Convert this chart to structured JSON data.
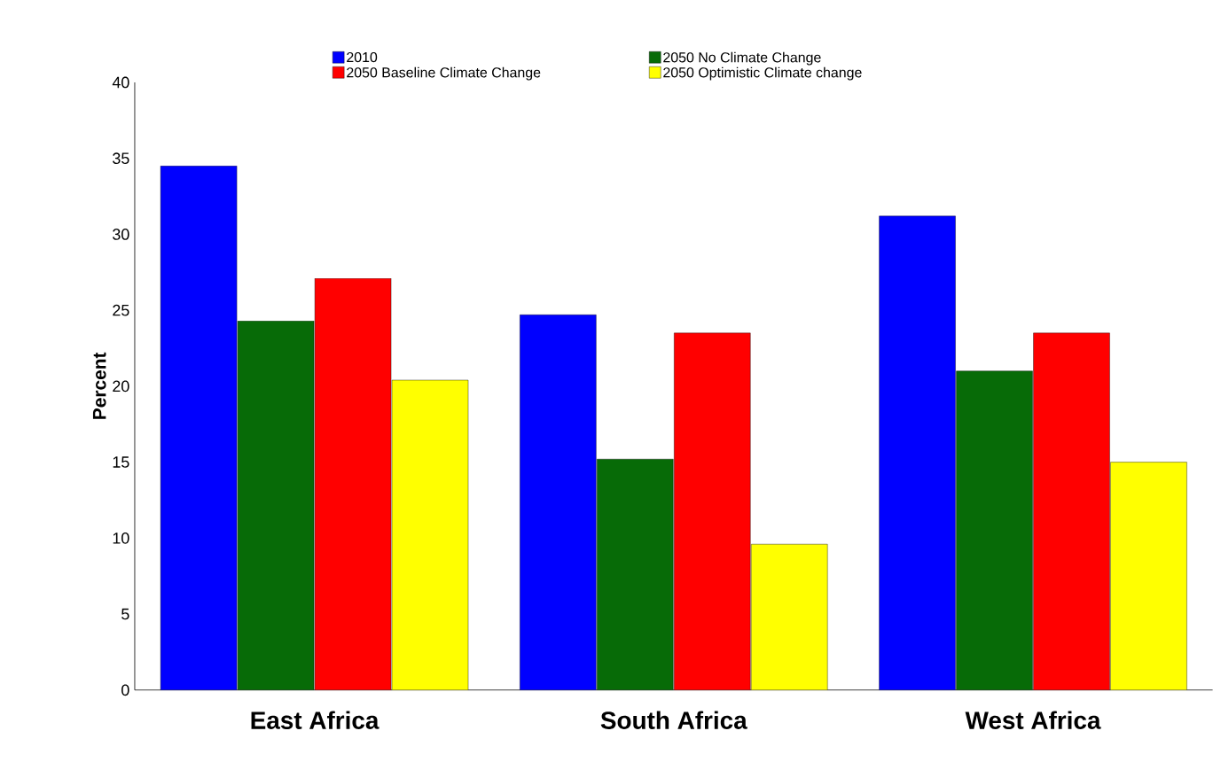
{
  "chart_data": {
    "type": "bar",
    "ylabel": "Percent",
    "categories": [
      "East Africa",
      "South Africa",
      "West Africa"
    ],
    "series": [
      {
        "name": "2010",
        "color": "#0000ff",
        "values": [
          34.5,
          24.7,
          31.2
        ]
      },
      {
        "name": "2050 No Climate Change",
        "color": "#076b07",
        "values": [
          24.3,
          15.2,
          21.0
        ]
      },
      {
        "name": "2050 Baseline Climate Change",
        "color": "#ff0000",
        "values": [
          27.1,
          23.5,
          23.5
        ]
      },
      {
        "name": "2050 Optimistic Climate change",
        "color": "#ffff00",
        "values": [
          20.4,
          9.6,
          15.0
        ]
      }
    ],
    "ylim": [
      0,
      40
    ],
    "yticks": [
      0,
      5,
      10,
      15,
      20,
      25,
      30,
      35,
      40
    ],
    "legend": "top"
  }
}
